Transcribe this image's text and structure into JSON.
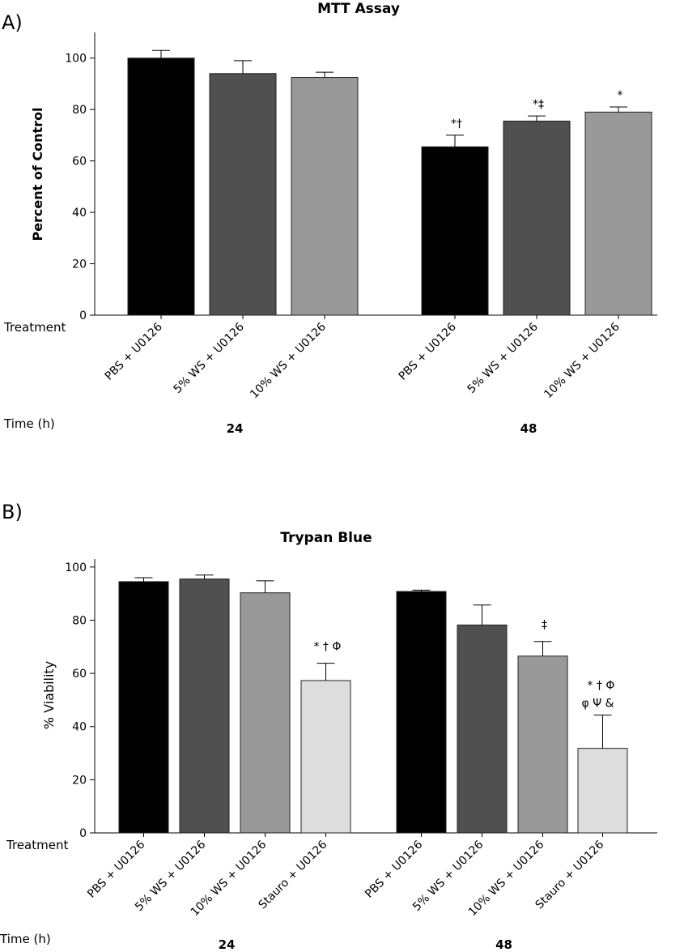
{
  "chart_data": [
    {
      "type": "bar",
      "panel": "A)",
      "title": "MTT Assay",
      "xlabel": "Treatment",
      "ylabel": "Percent of Control",
      "ylim": [
        0,
        110
      ],
      "yticks": [
        0,
        20,
        40,
        60,
        80,
        100
      ],
      "group_label": "Time (h)",
      "groups": [
        {
          "time": "24",
          "bars": [
            {
              "label": "PBS + U0126",
              "value": 100,
              "error": 3,
              "color": "#000000",
              "sig": ""
            },
            {
              "label": "5% WS + U0126",
              "value": 94,
              "error": 5,
              "color": "#505050",
              "sig": ""
            },
            {
              "label": "10% WS + U0126",
              "value": 92.5,
              "error": 2,
              "color": "#999999",
              "sig": ""
            }
          ]
        },
        {
          "time": "48",
          "bars": [
            {
              "label": "PBS + U0126",
              "value": 65.5,
              "error": 4.5,
              "color": "#000000",
              "sig": "*†"
            },
            {
              "label": "5% WS + U0126",
              "value": 75.5,
              "error": 2,
              "color": "#505050",
              "sig": "*‡"
            },
            {
              "label": "10% WS + U0126",
              "value": 79,
              "error": 2,
              "color": "#999999",
              "sig": "*"
            }
          ]
        }
      ]
    },
    {
      "type": "bar",
      "panel": "B)",
      "title": "Trypan Blue",
      "xlabel": "Treatment",
      "ylabel": "% Viability",
      "ylim": [
        0,
        103
      ],
      "yticks": [
        0,
        20,
        40,
        60,
        80,
        100
      ],
      "group_label": "Time (h)",
      "groups": [
        {
          "time": "24",
          "bars": [
            {
              "label": "PBS + U0126",
              "value": 94.5,
              "error": 1.5,
              "color": "#000000",
              "sig": ""
            },
            {
              "label": "5% WS + U0126",
              "value": 95.5,
              "error": 1.5,
              "color": "#505050",
              "sig": ""
            },
            {
              "label": "10% WS + U0126",
              "value": 90.3,
              "error": 4.5,
              "color": "#999999",
              "sig": ""
            },
            {
              "label": "Stauro + U0126",
              "value": 57.3,
              "error": 6.5,
              "color": "#dddddd",
              "sig": "* † Φ"
            }
          ]
        },
        {
          "time": "48",
          "bars": [
            {
              "label": "PBS + U0126",
              "value": 90.8,
              "error": 0.5,
              "color": "#000000",
              "sig": ""
            },
            {
              "label": "5% WS + U0126",
              "value": 78.2,
              "error": 7.5,
              "color": "#505050",
              "sig": ""
            },
            {
              "label": "10% WS + U0126",
              "value": 66.5,
              "error": 5.5,
              "color": "#999999",
              "sig": "‡"
            },
            {
              "label": "Stauro + U0126",
              "value": 31.8,
              "error": 12.5,
              "color": "#dddddd",
              "sig": "* † Φ",
              "sig2": "φ Ψ &"
            }
          ]
        }
      ]
    }
  ]
}
